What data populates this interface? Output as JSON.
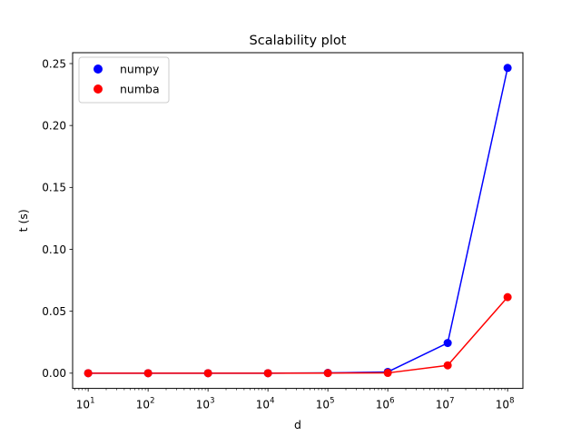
{
  "chart_data": {
    "type": "line",
    "title": "Scalability plot",
    "xlabel": "d",
    "ylabel": "t (s)",
    "xscale": "log",
    "x": [
      10,
      100,
      1000,
      10000,
      100000,
      1000000,
      10000000,
      100000000
    ],
    "xtick_exponents": [
      "1",
      "2",
      "3",
      "4",
      "5",
      "6",
      "7",
      "8"
    ],
    "xlim": [
      5.5,
      180000000
    ],
    "ylim": [
      -0.0123,
      0.2588
    ],
    "yticks": [
      "0.00",
      "0.05",
      "0.10",
      "0.15",
      "0.20",
      "0.25"
    ],
    "ytick_values": [
      0,
      0.05,
      0.1,
      0.15,
      0.2,
      0.25
    ],
    "series": [
      {
        "name": "numpy",
        "color": "#0000ff",
        "values": [
          0.0,
          0.0,
          0.0,
          0.0,
          0.0002,
          0.001,
          0.0244,
          0.2465
        ]
      },
      {
        "name": "numba",
        "color": "#ff0000",
        "values": [
          0.0,
          0.0,
          0.0,
          0.0,
          0.0001,
          0.0002,
          0.0063,
          0.0614
        ]
      }
    ],
    "legend_position": "upper-left",
    "grid": false
  }
}
